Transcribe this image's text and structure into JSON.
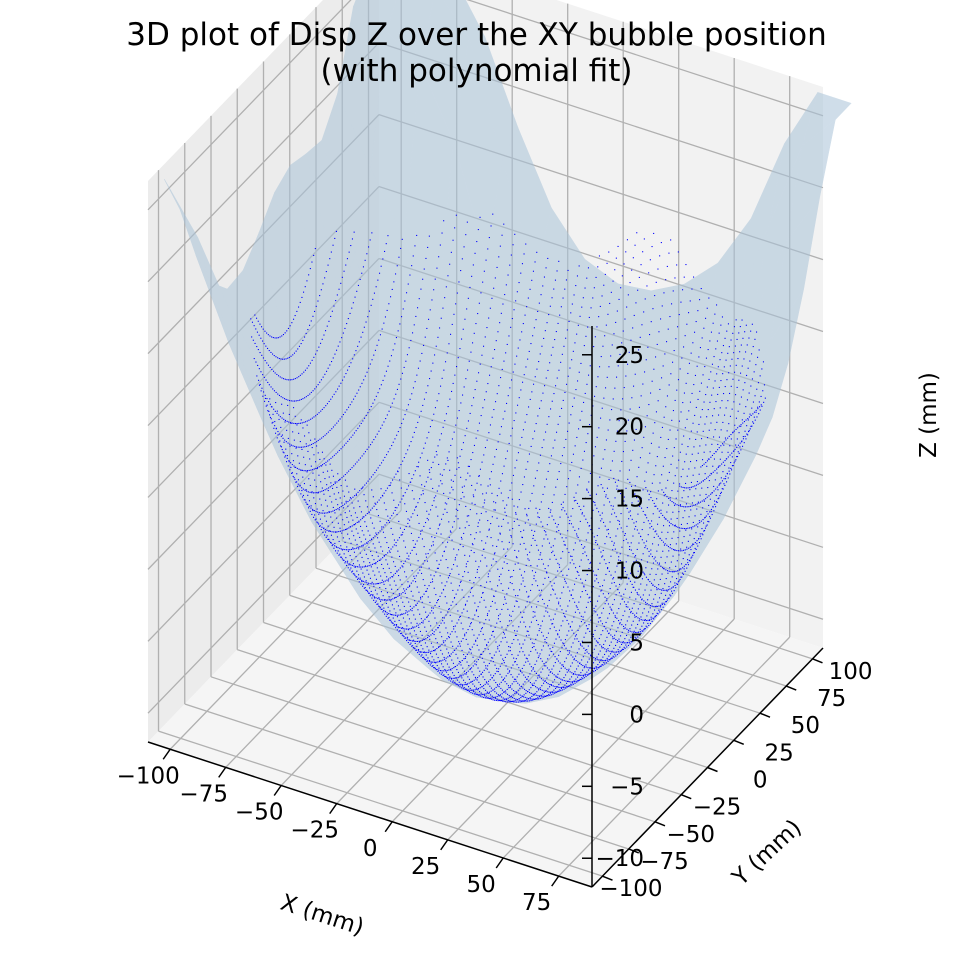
{
  "chart_data": {
    "type": "surface3d",
    "title": [
      "3D plot of Disp Z over the XY bubble position",
      "(with polynomial fit)"
    ],
    "xlabel": "X (mm)",
    "ylabel": "Y (mm)",
    "zlabel": "Z (mm)",
    "x_ticks": [
      -100,
      -75,
      -50,
      -25,
      0,
      25,
      50,
      75
    ],
    "x_tick_labels": [
      "−100",
      "−75",
      "−50",
      "−25",
      "0",
      "25",
      "50",
      "75"
    ],
    "y_ticks": [
      -100,
      -75,
      -50,
      -25,
      0,
      25,
      50,
      75,
      100
    ],
    "y_tick_labels": [
      "−100",
      "−75",
      "−50",
      "−25",
      "0",
      "25",
      "50",
      "75",
      "100"
    ],
    "z_ticks": [
      -10,
      -5,
      0,
      5,
      10,
      15,
      20,
      25
    ],
    "z_tick_labels": [
      "−10",
      "−5",
      "0",
      "5",
      "10",
      "15",
      "20",
      "25"
    ],
    "xlim": [
      -110,
      90
    ],
    "ylim": [
      -110,
      110
    ],
    "zlim": [
      -12,
      27
    ],
    "grid": true,
    "series": [
      {
        "kind": "scatter",
        "color": "#0000ff",
        "marker": "dot",
        "model": "bowl",
        "z_min": -11,
        "z_max": 12,
        "extent_radius_mm": 105
      },
      {
        "kind": "surface",
        "color": "#a9c3d8",
        "opacity": 0.5,
        "model": "polynomial_fit",
        "z_min": -11,
        "z_max": 27
      }
    ]
  }
}
